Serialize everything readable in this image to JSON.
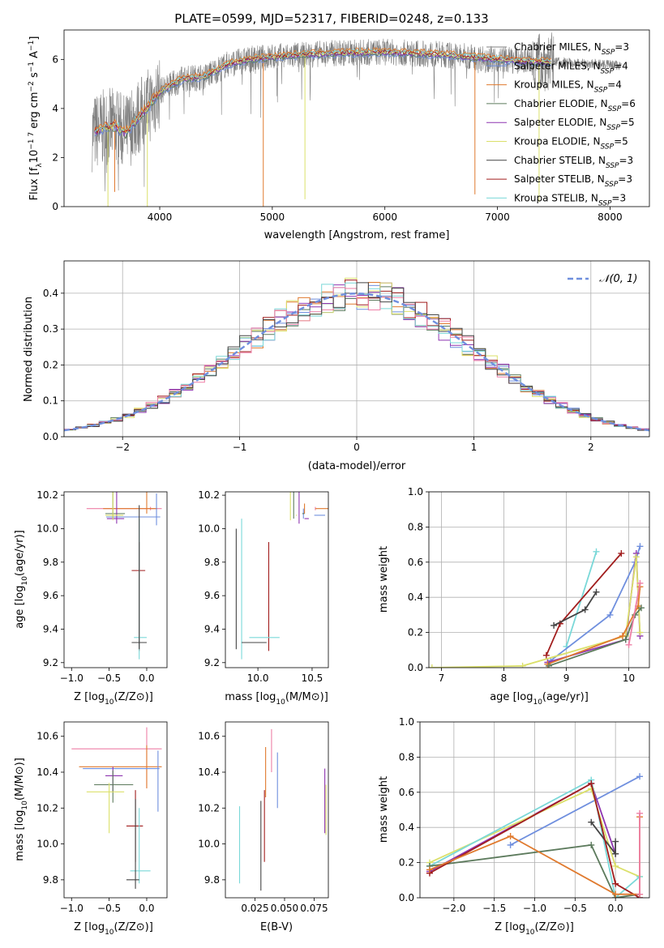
{
  "colors": {
    "series": [
      "#808080",
      "#6f8fde",
      "#e07a2e",
      "#5c7a5c",
      "#8e35b0",
      "#dbe06a",
      "#444444",
      "#a11d1d",
      "#7ad8d8",
      "#ee7fa6"
    ]
  },
  "chart_data": [
    {
      "id": "spectrum",
      "type": "line",
      "title": "PLATE=0599, MJD=52317, FIBERID=0248, z=0.133",
      "xlabel": "wavelength [Angstrom, rest frame]",
      "ylabel": "Flux [fλ10⁻¹⁷ erg cm⁻² s⁻¹ A⁻¹]",
      "xlim": [
        3150,
        8350
      ],
      "ylim": [
        0,
        7.2
      ],
      "xticks": [
        "4000",
        "5000",
        "6000",
        "7000",
        "8000"
      ],
      "yticks": [
        "0",
        "2",
        "4",
        "6"
      ],
      "legend_position": "right",
      "legend": [
        "Chabrier MILES, N_SSP=3",
        "Salpeter MILES, N_SSP=4",
        "Kroupa MILES, N_SSP=4",
        "Chabrier ELODIE, N_SSP=6",
        "Salpeter ELODIE, N_SSP=5",
        "Kroupa ELODIE, N_SSP=5",
        "Chabrier STELIB, N_SSP=3",
        "Salpeter STELIB, N_SSP=3",
        "Kroupa STELIB, N_SSP=3"
      ],
      "data_wave_range": [
        3400,
        8100
      ],
      "continuum": [
        [
          3400,
          3.0
        ],
        [
          3500,
          3.2
        ],
        [
          3600,
          3.3
        ],
        [
          3700,
          3.0
        ],
        [
          3800,
          3.6
        ],
        [
          3900,
          4.1
        ],
        [
          4000,
          4.7
        ],
        [
          4200,
          5.2
        ],
        [
          4400,
          5.3
        ],
        [
          4600,
          5.8
        ],
        [
          4800,
          6.0
        ],
        [
          5000,
          6.1
        ],
        [
          5500,
          6.25
        ],
        [
          6000,
          6.3
        ],
        [
          6500,
          6.2
        ],
        [
          7000,
          6.0
        ],
        [
          7400,
          5.9
        ],
        [
          7500,
          5.9
        ]
      ]
    },
    {
      "id": "residuals",
      "type": "histogram",
      "xlabel": "(data-model)/error",
      "ylabel": "Normed distribution",
      "xlim": [
        -2.5,
        2.5
      ],
      "ylim": [
        0,
        0.49
      ],
      "xticks": [
        "−2",
        "−1",
        "0",
        "1",
        "2"
      ],
      "yticks": [
        "0.0",
        "0.1",
        "0.2",
        "0.3",
        "0.4"
      ],
      "grid": true,
      "legend": [
        "𝒩(0, 1)"
      ],
      "legend_position": "top-right",
      "bin_width": 0.1
    },
    {
      "id": "age_vs_Z",
      "type": "errorbar",
      "xlabel": "Z [log₁₀(Z/Z⊙)]",
      "ylabel": "age  [log₁₀(age/yr)]",
      "xlim": [
        -1.1,
        0.27
      ],
      "ylim": [
        9.17,
        10.22
      ],
      "xticks": [
        "−1.0",
        "−0.5",
        "0.0"
      ],
      "yticks": [
        "9.2",
        "9.4",
        "9.6",
        "9.8",
        "10.0",
        "10.2"
      ],
      "points": [
        {
          "x": 0.05,
          "y": 10.12,
          "ex": [
            -0.85,
            0.15
          ],
          "ey": [
            0.01,
            0.01
          ],
          "c": 9
        },
        {
          "x": 0.0,
          "y": 10.12,
          "ex": [
            -0.58,
            0.14
          ],
          "ey": [
            0.03,
            0.2
          ],
          "c": 2
        },
        {
          "x": 0.13,
          "y": 10.07,
          "ex": [
            -0.67,
            0.05
          ],
          "ey": [
            0.05,
            0.14
          ],
          "c": 1
        },
        {
          "x": -0.45,
          "y": 10.09,
          "ex": [
            -0.1,
            0.16
          ],
          "ey": [
            0.03,
            0.26
          ],
          "c": 3
        },
        {
          "x": -0.4,
          "y": 10.06,
          "ex": [
            -0.13,
            0.1
          ],
          "ey": [
            0.03,
            0.23
          ],
          "c": 4
        },
        {
          "x": -0.45,
          "y": 10.08,
          "ex": [
            -0.1,
            0.14
          ],
          "ey": [
            0.03,
            0.23
          ],
          "c": 5
        },
        {
          "x": -0.1,
          "y": 9.75,
          "ex": [
            -0.1,
            0.08
          ],
          "ey": [
            0.48,
            0.17
          ],
          "c": 7
        },
        {
          "x": -0.1,
          "y": 9.35,
          "ex": [
            -0.07,
            0.1
          ],
          "ey": [
            0.13,
            0.71
          ],
          "c": 8
        },
        {
          "x": -0.1,
          "y": 9.32,
          "ex": [
            -0.1,
            0.1
          ],
          "ey": [
            0.04,
            0.82
          ],
          "c": 6
        }
      ]
    },
    {
      "id": "age_vs_mass",
      "type": "errorbar",
      "xlabel": "mass [log₁₀(M/M⊙)]",
      "ylabel": "",
      "xlim": [
        9.7,
        10.65
      ],
      "ylim": [
        9.17,
        10.22
      ],
      "xticks": [
        "10.0",
        "10.5"
      ],
      "yticks": [
        "9.2",
        "9.4",
        "9.6",
        "9.8",
        "10.0",
        "10.2"
      ],
      "points": [
        {
          "x": 10.53,
          "y": 10.12,
          "ex": [
            0.1,
            0.1
          ],
          "ey": [
            0.01,
            0.01
          ],
          "c": 9
        },
        {
          "x": 10.43,
          "y": 10.12,
          "ex": [
            0.27,
            0.1
          ],
          "ey": [
            0.03,
            0.03
          ],
          "c": 2
        },
        {
          "x": 10.42,
          "y": 10.08,
          "ex": [
            0.2,
            0.1
          ],
          "ey": [
            0.02,
            0.04
          ],
          "c": 1
        },
        {
          "x": 10.33,
          "y": 10.09,
          "ex": [
            0.1,
            0.08
          ],
          "ey": [
            0.03,
            0.21
          ],
          "c": 3
        },
        {
          "x": 10.38,
          "y": 10.06,
          "ex": [
            0.09,
            0.05
          ],
          "ey": [
            0.03,
            0.23
          ],
          "c": 4
        },
        {
          "x": 10.3,
          "y": 10.08,
          "ex": [
            0.06,
            0.05
          ],
          "ey": [
            0.03,
            0.23
          ],
          "c": 5
        },
        {
          "x": 10.1,
          "y": 9.75,
          "ex": [
            0.2,
            0.2
          ],
          "ey": [
            0.48,
            0.17
          ],
          "c": 7
        },
        {
          "x": 9.85,
          "y": 9.35,
          "ex": [
            0.07,
            0.35
          ],
          "ey": [
            0.13,
            0.71
          ],
          "c": 8
        },
        {
          "x": 9.8,
          "y": 9.32,
          "ex": [
            0.05,
            0.28
          ],
          "ey": [
            0.04,
            0.68
          ],
          "c": 6
        }
      ]
    },
    {
      "id": "weight_vs_age",
      "type": "line",
      "xlabel": "age  [log₁₀(age/yr)]",
      "ylabel": "mass weight",
      "xlim": [
        6.8,
        10.33
      ],
      "ylim": [
        0,
        1.0
      ],
      "xticks": [
        "7",
        "8",
        "9",
        "10"
      ],
      "yticks": [
        "0.0",
        "0.2",
        "0.4",
        "0.6",
        "0.8",
        "1.0"
      ],
      "grid": true,
      "series": [
        {
          "c": 8,
          "values": [
            [
              9.0,
              0.12
            ],
            [
              9.48,
              0.66
            ]
          ]
        },
        {
          "c": 7,
          "values": [
            [
              8.68,
              0.07
            ],
            [
              8.9,
              0.25
            ],
            [
              9.88,
              0.65
            ]
          ]
        },
        {
          "c": 6,
          "values": [
            [
              8.8,
              0.24
            ],
            [
              9.3,
              0.33
            ],
            [
              9.48,
              0.43
            ]
          ]
        },
        {
          "c": 1,
          "values": [
            [
              8.75,
              0.04
            ],
            [
              9.7,
              0.3
            ],
            [
              10.1,
              0.6
            ],
            [
              10.18,
              0.69
            ]
          ]
        },
        {
          "c": 4,
          "values": [
            [
              8.7,
              0.03
            ],
            [
              9.95,
              0.16
            ],
            [
              10.12,
              0.65
            ],
            [
              10.18,
              0.18
            ]
          ]
        },
        {
          "c": 5,
          "values": [
            [
              6.85,
              0.0
            ],
            [
              8.3,
              0.01
            ],
            [
              9.95,
              0.18
            ],
            [
              10.12,
              0.63
            ],
            [
              10.18,
              0.2
            ]
          ]
        },
        {
          "c": 2,
          "values": [
            [
              8.7,
              0.02
            ],
            [
              9.9,
              0.18
            ],
            [
              10.15,
              0.35
            ],
            [
              10.18,
              0.46
            ]
          ]
        },
        {
          "c": 3,
          "values": [
            [
              8.72,
              0.01
            ],
            [
              9.95,
              0.16
            ],
            [
              10.1,
              0.3
            ],
            [
              10.2,
              0.34
            ]
          ]
        },
        {
          "c": 9,
          "values": [
            [
              10.0,
              0.13
            ],
            [
              10.18,
              0.48
            ]
          ]
        }
      ]
    },
    {
      "id": "mass_vs_Z",
      "type": "errorbar",
      "xlabel": "Z [log₁₀(Z/Z⊙)]",
      "ylabel": "mass [log₁₀(M/M⊙)]",
      "xlim": [
        -1.1,
        0.27
      ],
      "ylim": [
        9.7,
        10.68
      ],
      "xticks": [
        "−1.0",
        "−0.5",
        "0.0"
      ],
      "yticks": [
        "9.8",
        "10.0",
        "10.2",
        "10.4",
        "10.6"
      ],
      "points": [
        {
          "x": 0.0,
          "y": 10.53,
          "ex": [
            -1.0,
            0.2
          ],
          "ey": [
            0.22,
            0.12
          ],
          "c": 9
        },
        {
          "x": 0.0,
          "y": 10.43,
          "ex": [
            -0.9,
            0.2
          ],
          "ey": [
            0.12,
            0.12
          ],
          "c": 2
        },
        {
          "x": 0.15,
          "y": 10.42,
          "ex": [
            -1.0,
            0.02
          ],
          "ey": [
            0.24,
            0.1
          ],
          "c": 1
        },
        {
          "x": -0.45,
          "y": 10.38,
          "ex": [
            -0.1,
            0.13
          ],
          "ey": [
            0.09,
            0.05
          ],
          "c": 4
        },
        {
          "x": -0.45,
          "y": 10.33,
          "ex": [
            -0.25,
            0.27
          ],
          "ey": [
            0.1,
            0.08
          ],
          "c": 3
        },
        {
          "x": -0.5,
          "y": 10.29,
          "ex": [
            -0.3,
            0.2
          ],
          "ey": [
            0.23,
            0.05
          ],
          "c": 5
        },
        {
          "x": -0.15,
          "y": 10.1,
          "ex": [
            -0.12,
            0.1
          ],
          "ey": [
            0.2,
            0.2
          ],
          "c": 7
        },
        {
          "x": -0.1,
          "y": 9.85,
          "ex": [
            -0.12,
            0.15
          ],
          "ey": [
            0.07,
            0.35
          ],
          "c": 8
        },
        {
          "x": -0.15,
          "y": 9.8,
          "ex": [
            -0.12,
            0.05
          ],
          "ey": [
            0.05,
            0.45
          ],
          "c": 6
        }
      ]
    },
    {
      "id": "mass_vs_ebv",
      "type": "errorbar",
      "xlabel": "E(B-V)",
      "ylabel": "",
      "xlim": [
        0.0,
        0.087
      ],
      "ylim": [
        9.7,
        10.68
      ],
      "xticks": [
        "0.025",
        "0.050",
        "0.075"
      ],
      "yticks": [
        "9.8",
        "10.0",
        "10.2",
        "10.4",
        "10.6"
      ],
      "points": [
        {
          "x": 0.012,
          "y": 9.99,
          "ex": [
            0,
            0
          ],
          "ey": [
            0.21,
            0.22
          ],
          "c": 8
        },
        {
          "x": 0.03,
          "y": 9.99,
          "ex": [
            0,
            0
          ],
          "ey": [
            0.25,
            0.25
          ],
          "c": 6
        },
        {
          "x": 0.033,
          "y": 10.1,
          "ex": [
            0,
            0
          ],
          "ey": [
            0.2,
            0.2
          ],
          "c": 7
        },
        {
          "x": 0.034,
          "y": 10.4,
          "ex": [
            0,
            0
          ],
          "ey": [
            0.14,
            0.14
          ],
          "c": 2
        },
        {
          "x": 0.039,
          "y": 10.52,
          "ex": [
            0,
            0
          ],
          "ey": [
            0.12,
            0.12
          ],
          "c": 9
        },
        {
          "x": 0.044,
          "y": 10.37,
          "ex": [
            0,
            0
          ],
          "ey": [
            0.17,
            0.14
          ],
          "c": 1
        },
        {
          "x": 0.084,
          "y": 10.29,
          "ex": [
            0,
            0
          ],
          "ey": [
            0.23,
            0.13
          ],
          "c": 4
        },
        {
          "x": 0.085,
          "y": 10.19,
          "ex": [
            0,
            0
          ],
          "ey": [
            0.14,
            0.14
          ],
          "c": 5
        }
      ]
    },
    {
      "id": "weight_vs_Z",
      "type": "line",
      "xlabel": "Z [log₁₀(Z/Z⊙)]",
      "ylabel": "mass weight",
      "xlim": [
        -2.42,
        0.42
      ],
      "ylim": [
        0,
        1.0
      ],
      "xticks": [
        "−2.0",
        "−1.5",
        "−1.0",
        "−0.5",
        "0.0"
      ],
      "yticks": [
        "0.0",
        "0.2",
        "0.4",
        "0.6",
        "0.8",
        "1.0"
      ],
      "grid": true,
      "series": [
        {
          "c": 1,
          "values": [
            [
              -1.3,
              0.3
            ],
            [
              0.3,
              0.69
            ]
          ]
        },
        {
          "c": 4,
          "values": [
            [
              -2.3,
              0.15
            ],
            [
              -0.3,
              0.65
            ],
            [
              0.0,
              0.25
            ]
          ]
        },
        {
          "c": 5,
          "values": [
            [
              -2.3,
              0.2
            ],
            [
              -0.3,
              0.62
            ],
            [
              0.0,
              0.18
            ],
            [
              0.3,
              0.12
            ]
          ]
        },
        {
          "c": 8,
          "values": [
            [
              -2.3,
              0.18
            ],
            [
              -0.3,
              0.67
            ],
            [
              0.0,
              0.0
            ],
            [
              0.3,
              0.12
            ]
          ]
        },
        {
          "c": 3,
          "values": [
            [
              -2.3,
              0.18
            ],
            [
              -0.3,
              0.3
            ],
            [
              0.0,
              0.0
            ],
            [
              0.3,
              0.02
            ]
          ]
        },
        {
          "c": 6,
          "values": [
            [
              -0.3,
              0.43
            ],
            [
              0.0,
              0.25
            ],
            [
              0.0,
              0.32
            ]
          ]
        },
        {
          "c": 7,
          "values": [
            [
              -2.3,
              0.14
            ],
            [
              -0.3,
              0.65
            ],
            [
              0.0,
              0.08
            ],
            [
              0.3,
              0.0
            ]
          ]
        },
        {
          "c": 2,
          "values": [
            [
              -2.3,
              0.16
            ],
            [
              -1.3,
              0.35
            ],
            [
              0.0,
              0.02
            ],
            [
              0.3,
              0.02
            ],
            [
              0.3,
              0.46
            ]
          ]
        },
        {
          "c": 9,
          "values": [
            [
              0.3,
              0.48
            ],
            [
              0.3,
              0.02
            ]
          ]
        }
      ]
    }
  ]
}
